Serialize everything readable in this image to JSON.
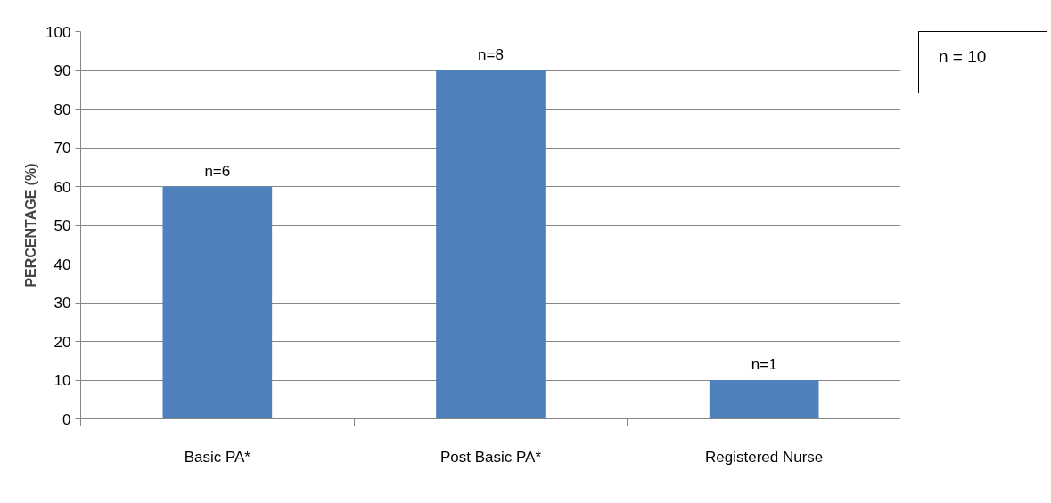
{
  "chart_data": {
    "type": "bar",
    "ylabel": "PERCENTAGE (%)",
    "categories": [
      "Basic PA*",
      "Post Basic PA*",
      "Registered Nurse"
    ],
    "values": [
      60,
      90,
      10
    ],
    "color": "#4f81bd",
    "ylim": [
      0,
      100
    ],
    "yticks": [
      0,
      10,
      20,
      30,
      40,
      50,
      60,
      70,
      80,
      90,
      100
    ],
    "grid": "y",
    "annotations": [
      {
        "text": "n=6",
        "x": "Basic PA*",
        "y": 60
      },
      {
        "text": "n=8",
        "x": "Post Basic PA*",
        "y": 90
      },
      {
        "text": "n=1",
        "x": "Registered Nurse",
        "y": 10
      },
      "n = 10"
    ]
  }
}
